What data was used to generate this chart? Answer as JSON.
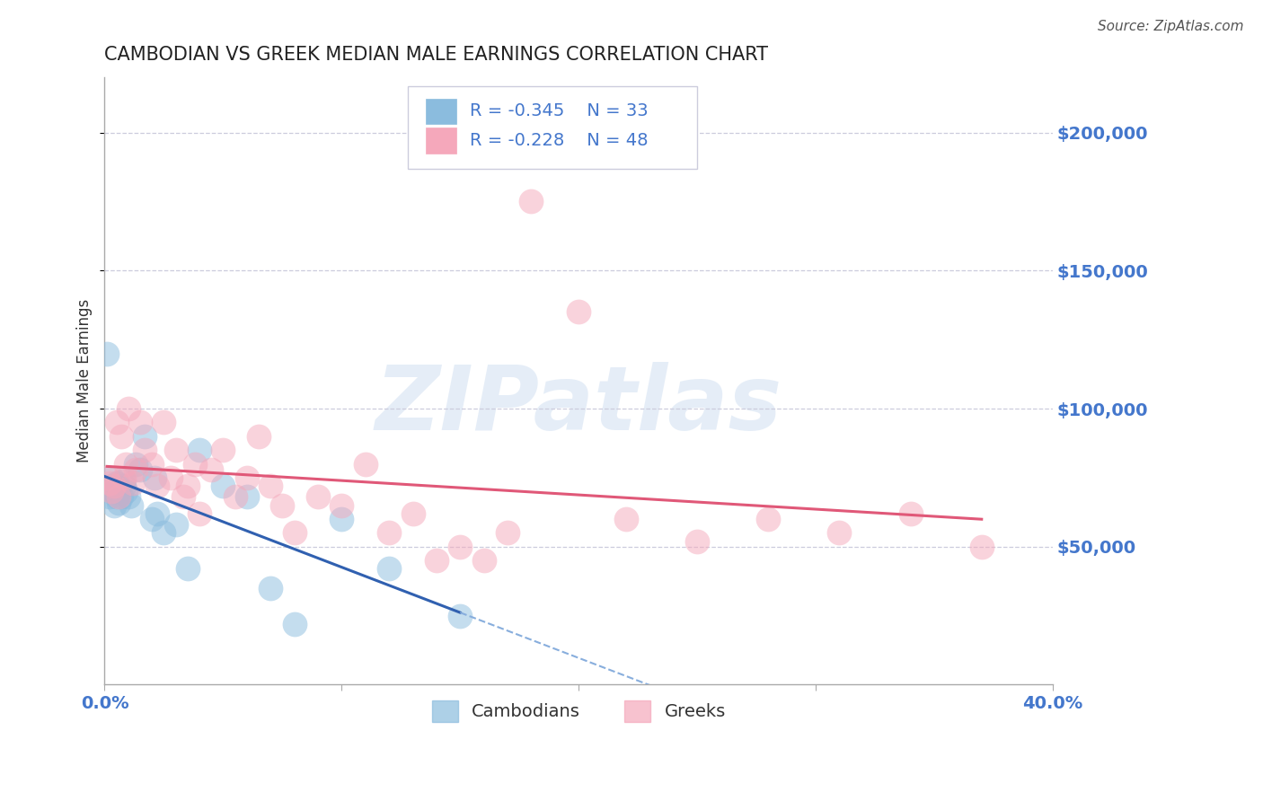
{
  "title": "CAMBODIAN VS GREEK MEDIAN MALE EARNINGS CORRELATION CHART",
  "source": "Source: ZipAtlas.com",
  "ylabel": "Median Male Earnings",
  "xlim": [
    0.0,
    0.4
  ],
  "ylim": [
    0,
    220000
  ],
  "xticks": [
    0.0,
    0.1,
    0.2,
    0.3,
    0.4
  ],
  "xtick_labels": [
    "0.0%",
    "",
    "",
    "",
    "40.0%"
  ],
  "ytick_positions": [
    50000,
    100000,
    150000,
    200000
  ],
  "ytick_labels": [
    "$50,000",
    "$100,000",
    "$150,000",
    "$200,000"
  ],
  "grid_color": "#ccccdd",
  "cambodian_color": "#8bbcde",
  "greek_color": "#f5a8bb",
  "blue_line_color": "#3060b0",
  "pink_line_color": "#e05878",
  "blue_dash_color": "#88aedd",
  "legend_text_color": "#4477cc",
  "cambodian_R": "-0.345",
  "cambodian_N": "33",
  "greek_R": "-0.228",
  "greek_N": "48",
  "watermark_text": "ZIPatlas",
  "cambodian_x": [
    0.001,
    0.002,
    0.003,
    0.003,
    0.004,
    0.004,
    0.005,
    0.005,
    0.006,
    0.006,
    0.007,
    0.008,
    0.008,
    0.009,
    0.01,
    0.011,
    0.013,
    0.015,
    0.017,
    0.02,
    0.021,
    0.022,
    0.025,
    0.03,
    0.035,
    0.04,
    0.05,
    0.06,
    0.07,
    0.08,
    0.1,
    0.12,
    0.15
  ],
  "cambodian_y": [
    120000,
    68000,
    75000,
    72000,
    70000,
    65000,
    68000,
    73000,
    71000,
    66000,
    68000,
    72000,
    74000,
    70000,
    68000,
    65000,
    80000,
    78000,
    90000,
    60000,
    75000,
    62000,
    55000,
    58000,
    42000,
    85000,
    72000,
    68000,
    35000,
    22000,
    60000,
    42000,
    25000
  ],
  "greek_x": [
    0.001,
    0.002,
    0.003,
    0.004,
    0.005,
    0.006,
    0.007,
    0.008,
    0.009,
    0.01,
    0.012,
    0.013,
    0.015,
    0.017,
    0.02,
    0.022,
    0.025,
    0.028,
    0.03,
    0.033,
    0.035,
    0.038,
    0.04,
    0.045,
    0.05,
    0.055,
    0.06,
    0.065,
    0.07,
    0.075,
    0.08,
    0.09,
    0.1,
    0.11,
    0.12,
    0.13,
    0.14,
    0.15,
    0.16,
    0.17,
    0.18,
    0.2,
    0.22,
    0.25,
    0.28,
    0.31,
    0.34,
    0.37
  ],
  "greek_y": [
    75000,
    73000,
    70000,
    72000,
    95000,
    68000,
    90000,
    75000,
    80000,
    100000,
    73000,
    78000,
    95000,
    85000,
    80000,
    72000,
    95000,
    75000,
    85000,
    68000,
    72000,
    80000,
    62000,
    78000,
    85000,
    68000,
    75000,
    90000,
    72000,
    65000,
    55000,
    68000,
    65000,
    80000,
    55000,
    62000,
    45000,
    50000,
    45000,
    55000,
    175000,
    135000,
    60000,
    52000,
    60000,
    55000,
    62000,
    50000
  ]
}
